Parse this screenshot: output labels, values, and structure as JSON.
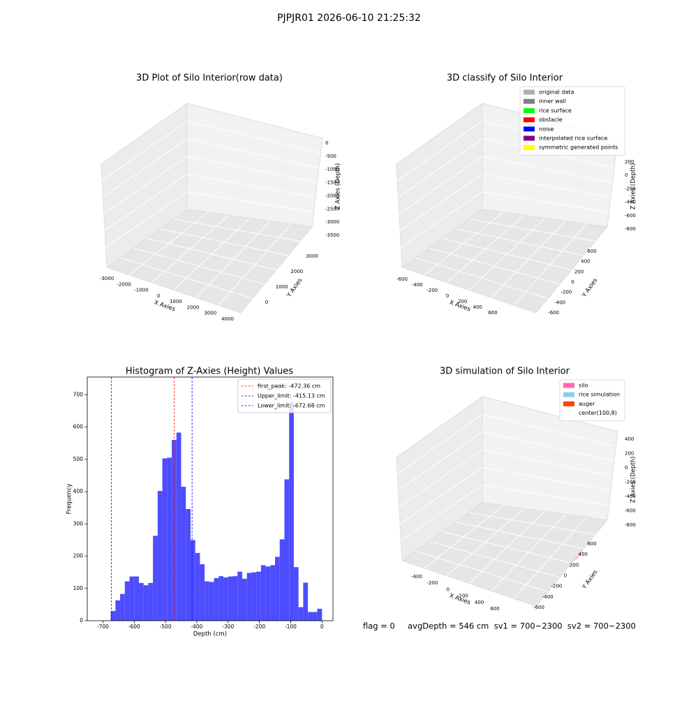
{
  "suptitle": "PJPJR01 2026-06-10 21:25:32",
  "footer": "flag = 0     avgDepth = 546 cm  sv1 = 700~2300  sv2 = 700~2300",
  "chart_data": [
    {
      "type": "scatter3d",
      "title": "3D Plot of Silo Interior(row data)",
      "xlabel": "X Axies",
      "ylabel": "Y Axies",
      "zlabel": "Z Axies (Depth)",
      "xticks": [
        -3000,
        -2000,
        -1000,
        0,
        1000,
        2000,
        3000,
        4000
      ],
      "yticks": [
        0,
        1000,
        2000,
        3000
      ],
      "zticks": [
        0,
        -500,
        -1000,
        -1500,
        -2000,
        -2500,
        -3000,
        -3500
      ]
    },
    {
      "type": "scatter3d",
      "title": "3D classify of Silo Interior",
      "xlabel": "X Axies",
      "ylabel": "Y Axies",
      "zlabel": "Z Axies (Depth)",
      "xticks": [
        -600,
        -400,
        -200,
        0,
        200,
        400,
        600
      ],
      "yticks": [
        -600,
        -400,
        -200,
        0,
        200,
        400,
        600
      ],
      "zticks": [
        200,
        0,
        -200,
        -400,
        -600,
        -800
      ],
      "legend": [
        {
          "name": "original data",
          "color": "#b0b0b0"
        },
        {
          "name": "inner wall",
          "color": "#808080"
        },
        {
          "name": "rice surface",
          "color": "#00ff00"
        },
        {
          "name": "obstacle",
          "color": "#ff0000"
        },
        {
          "name": "noise",
          "color": "#0000ff"
        },
        {
          "name": "interpolated rice surface",
          "color": "#800080"
        },
        {
          "name": "symmetric generated points",
          "color": "#ffff00"
        }
      ]
    },
    {
      "type": "histogram",
      "title": "Histogram of Z-Axies (Height) Values",
      "xlabel": "Depth (cm)",
      "ylabel": "Frequency",
      "color": "#4d4dff",
      "bins": [
        -675,
        -660,
        -645,
        -630,
        -615,
        -600,
        -585,
        -570,
        -555,
        -540,
        -525,
        -510,
        -495,
        -480,
        -465,
        -450,
        -435,
        -420,
        -405,
        -390,
        -375,
        -360,
        -345,
        -330,
        -315,
        -300,
        -285,
        -270,
        -255,
        -240,
        -225,
        -210,
        -195,
        -180,
        -165,
        -150,
        -135,
        -120,
        -105,
        -90,
        -75,
        -60,
        -45,
        -30,
        -15,
        0
      ],
      "values": [
        30,
        63,
        83,
        122,
        137,
        137,
        117,
        110,
        117,
        263,
        402,
        503,
        505,
        560,
        583,
        415,
        346,
        250,
        210,
        175,
        122,
        120,
        132,
        138,
        134,
        137,
        138,
        152,
        130,
        148,
        150,
        152,
        172,
        168,
        172,
        198,
        252,
        438,
        678,
        166,
        42,
        118,
        27,
        27,
        37
      ],
      "xlim": [
        -750,
        35
      ],
      "ylim": [
        0,
        755
      ],
      "xticks": [
        -700,
        -600,
        -500,
        -400,
        -300,
        -200,
        -100,
        0
      ],
      "yticks": [
        0,
        100,
        200,
        300,
        400,
        500,
        600,
        700
      ],
      "vlines": [
        {
          "name": "first_peak: -472.36 cm",
          "value": -472.36,
          "color": "#ff0000"
        },
        {
          "name": "Upper_limit: -415.13 cm",
          "value": -415.13,
          "color": "#0000ff"
        },
        {
          "name": "Lower_limit: -672.68 cm",
          "value": -672.68,
          "color": "#0000ff"
        }
      ],
      "legend_loc": "upper right"
    },
    {
      "type": "surface3d",
      "title": "3D simulation of Silo Interior",
      "xlabel": "X Axies",
      "ylabel": "Y Axies",
      "zlabel": "Z Axies (Depth)",
      "xticks": [
        -400,
        -200,
        0,
        200,
        400,
        600
      ],
      "yticks": [
        -600,
        -400,
        -200,
        0,
        200,
        400,
        600
      ],
      "zticks": [
        400,
        200,
        0,
        -200,
        -400,
        -600,
        -800
      ],
      "legend": [
        {
          "name": "silo",
          "color": "#ff69b4"
        },
        {
          "name": "rice simulation",
          "color": "#87ceeb"
        },
        {
          "name": "auger",
          "color": "#ff4500"
        },
        {
          "name": "center(100,8)",
          "color": "#ffffff"
        }
      ]
    }
  ]
}
